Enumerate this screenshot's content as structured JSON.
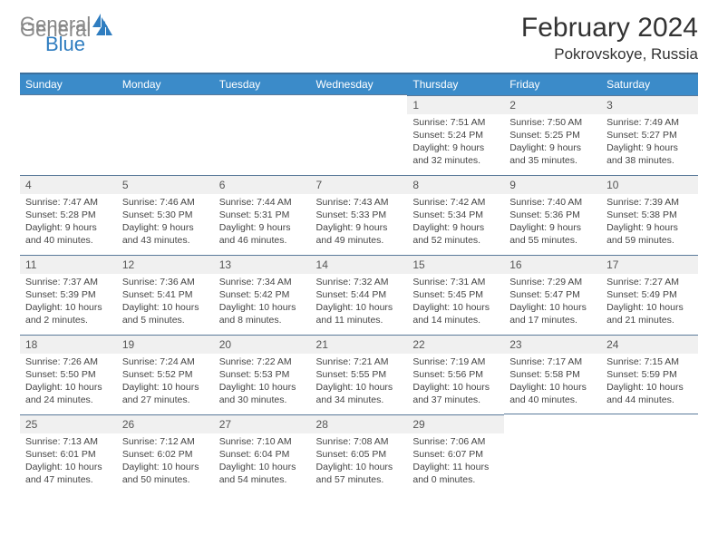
{
  "logo": {
    "gray": "General",
    "blue": "Blue"
  },
  "title": "February 2024",
  "location": "Pokrovskoye, Russia",
  "colors": {
    "header_bg": "#3b8bc9",
    "header_border": "#3b6f9c",
    "daynum_bg": "#f0f0f0",
    "cell_border": "#5a7a9a",
    "logo_gray": "#888888",
    "logo_blue": "#2f7dc0"
  },
  "weekdays": [
    "Sunday",
    "Monday",
    "Tuesday",
    "Wednesday",
    "Thursday",
    "Friday",
    "Saturday"
  ],
  "weeks": [
    [
      null,
      null,
      null,
      null,
      {
        "d": "1",
        "sr": "7:51 AM",
        "ss": "5:24 PM",
        "dl": "9 hours and 32 minutes."
      },
      {
        "d": "2",
        "sr": "7:50 AM",
        "ss": "5:25 PM",
        "dl": "9 hours and 35 minutes."
      },
      {
        "d": "3",
        "sr": "7:49 AM",
        "ss": "5:27 PM",
        "dl": "9 hours and 38 minutes."
      }
    ],
    [
      {
        "d": "4",
        "sr": "7:47 AM",
        "ss": "5:28 PM",
        "dl": "9 hours and 40 minutes."
      },
      {
        "d": "5",
        "sr": "7:46 AM",
        "ss": "5:30 PM",
        "dl": "9 hours and 43 minutes."
      },
      {
        "d": "6",
        "sr": "7:44 AM",
        "ss": "5:31 PM",
        "dl": "9 hours and 46 minutes."
      },
      {
        "d": "7",
        "sr": "7:43 AM",
        "ss": "5:33 PM",
        "dl": "9 hours and 49 minutes."
      },
      {
        "d": "8",
        "sr": "7:42 AM",
        "ss": "5:34 PM",
        "dl": "9 hours and 52 minutes."
      },
      {
        "d": "9",
        "sr": "7:40 AM",
        "ss": "5:36 PM",
        "dl": "9 hours and 55 minutes."
      },
      {
        "d": "10",
        "sr": "7:39 AM",
        "ss": "5:38 PM",
        "dl": "9 hours and 59 minutes."
      }
    ],
    [
      {
        "d": "11",
        "sr": "7:37 AM",
        "ss": "5:39 PM",
        "dl": "10 hours and 2 minutes."
      },
      {
        "d": "12",
        "sr": "7:36 AM",
        "ss": "5:41 PM",
        "dl": "10 hours and 5 minutes."
      },
      {
        "d": "13",
        "sr": "7:34 AM",
        "ss": "5:42 PM",
        "dl": "10 hours and 8 minutes."
      },
      {
        "d": "14",
        "sr": "7:32 AM",
        "ss": "5:44 PM",
        "dl": "10 hours and 11 minutes."
      },
      {
        "d": "15",
        "sr": "7:31 AM",
        "ss": "5:45 PM",
        "dl": "10 hours and 14 minutes."
      },
      {
        "d": "16",
        "sr": "7:29 AM",
        "ss": "5:47 PM",
        "dl": "10 hours and 17 minutes."
      },
      {
        "d": "17",
        "sr": "7:27 AM",
        "ss": "5:49 PM",
        "dl": "10 hours and 21 minutes."
      }
    ],
    [
      {
        "d": "18",
        "sr": "7:26 AM",
        "ss": "5:50 PM",
        "dl": "10 hours and 24 minutes."
      },
      {
        "d": "19",
        "sr": "7:24 AM",
        "ss": "5:52 PM",
        "dl": "10 hours and 27 minutes."
      },
      {
        "d": "20",
        "sr": "7:22 AM",
        "ss": "5:53 PM",
        "dl": "10 hours and 30 minutes."
      },
      {
        "d": "21",
        "sr": "7:21 AM",
        "ss": "5:55 PM",
        "dl": "10 hours and 34 minutes."
      },
      {
        "d": "22",
        "sr": "7:19 AM",
        "ss": "5:56 PM",
        "dl": "10 hours and 37 minutes."
      },
      {
        "d": "23",
        "sr": "7:17 AM",
        "ss": "5:58 PM",
        "dl": "10 hours and 40 minutes."
      },
      {
        "d": "24",
        "sr": "7:15 AM",
        "ss": "5:59 PM",
        "dl": "10 hours and 44 minutes."
      }
    ],
    [
      {
        "d": "25",
        "sr": "7:13 AM",
        "ss": "6:01 PM",
        "dl": "10 hours and 47 minutes."
      },
      {
        "d": "26",
        "sr": "7:12 AM",
        "ss": "6:02 PM",
        "dl": "10 hours and 50 minutes."
      },
      {
        "d": "27",
        "sr": "7:10 AM",
        "ss": "6:04 PM",
        "dl": "10 hours and 54 minutes."
      },
      {
        "d": "28",
        "sr": "7:08 AM",
        "ss": "6:05 PM",
        "dl": "10 hours and 57 minutes."
      },
      {
        "d": "29",
        "sr": "7:06 AM",
        "ss": "6:07 PM",
        "dl": "11 hours and 0 minutes."
      },
      null,
      null
    ]
  ],
  "labels": {
    "sunrise": "Sunrise:",
    "sunset": "Sunset:",
    "daylight": "Daylight:"
  }
}
